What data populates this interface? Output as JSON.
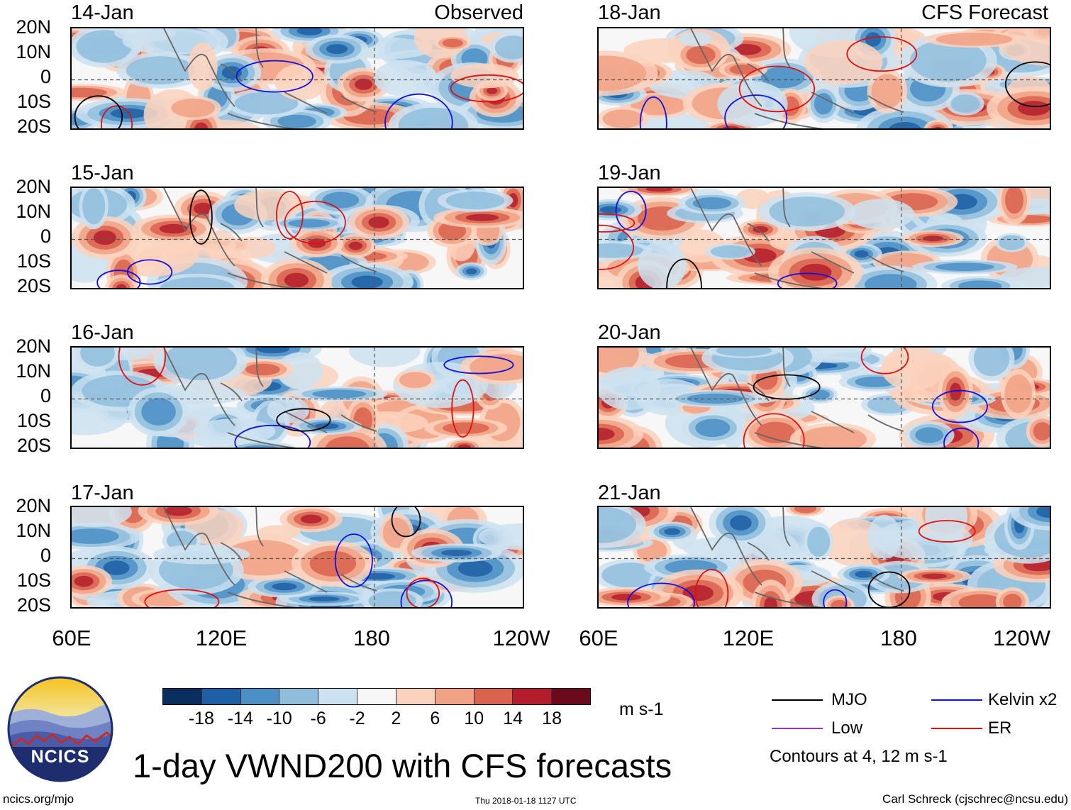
{
  "panels_left": [
    {
      "date": "14-Jan",
      "tag": "Observed"
    },
    {
      "date": "15-Jan",
      "tag": ""
    },
    {
      "date": "16-Jan",
      "tag": ""
    },
    {
      "date": "17-Jan",
      "tag": ""
    }
  ],
  "panels_right": [
    {
      "date": "18-Jan",
      "tag": "CFS Forecast"
    },
    {
      "date": "19-Jan",
      "tag": ""
    },
    {
      "date": "20-Jan",
      "tag": ""
    },
    {
      "date": "21-Jan",
      "tag": ""
    }
  ],
  "y_labels": [
    "20N",
    "10N",
    "0",
    "10S",
    "20S"
  ],
  "x_labels": [
    "60E",
    "120E",
    "180",
    "120W"
  ],
  "colorbar": {
    "labels": [
      "-18",
      "-14",
      "-10",
      "-6",
      "-2",
      "2",
      "6",
      "10",
      "14",
      "18"
    ],
    "units": "m s-1",
    "colors": [
      "#0a2f5e",
      "#1f5fa6",
      "#4c8fc6",
      "#8fbedd",
      "#cde2f0",
      "#f7f7f7",
      "#fbd2bd",
      "#f1a184",
      "#d9634f",
      "#b41e2c",
      "#6a0a1c"
    ]
  },
  "legend": {
    "items": [
      {
        "label": "MJO",
        "color": "#000000"
      },
      {
        "label": "Kelvin x2",
        "color": "#1010e0"
      },
      {
        "label": "Low",
        "color": "#9a32cd"
      },
      {
        "label": "ER",
        "color": "#e01010"
      }
    ],
    "note": "Contours at 4, 12 m s-1"
  },
  "title": "1-day VWND200 with CFS forecasts",
  "logo_text": "NCICS",
  "footer": {
    "left": "ncics.org/mjo",
    "center": "Thu 2018-01-18 1127 UTC",
    "right": "Carl Schreck (cjschrec@ncsu.edu)"
  }
}
